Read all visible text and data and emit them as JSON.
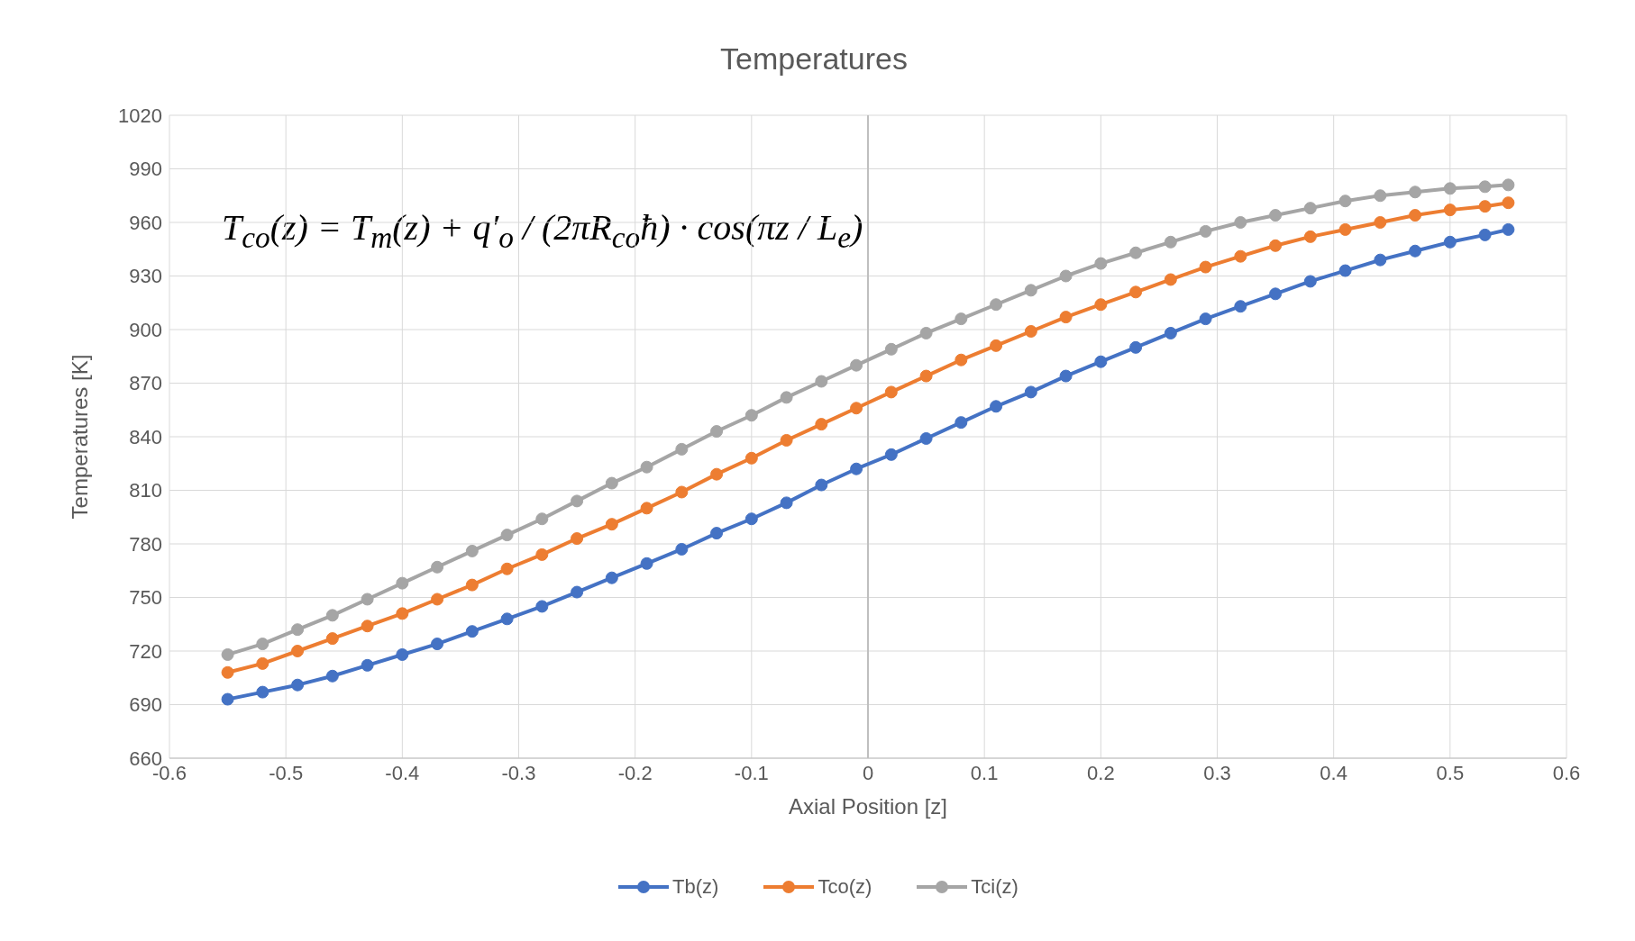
{
  "chart_data": {
    "type": "line",
    "title": "Temperatures",
    "xlabel": "Axial Position [z]",
    "ylabel": "Temperatures [K]",
    "annotations": [
      "T$_{co}$(z) = T$_{m}$(z) + q′$_{o}$ / (2πR$_{co}$ħ) · cos(πz / L$_{e}$)"
    ],
    "x": [
      -0.55,
      -0.52,
      -0.49,
      -0.46,
      -0.43,
      -0.4,
      -0.37,
      -0.34,
      -0.31,
      -0.28,
      -0.25,
      -0.22,
      -0.19,
      -0.16,
      -0.13,
      -0.1,
      -0.07,
      -0.04,
      -0.01,
      0.02,
      0.05,
      0.08,
      0.11,
      0.14,
      0.17,
      0.2,
      0.23,
      0.26,
      0.29,
      0.32,
      0.35,
      0.38,
      0.41,
      0.44,
      0.47,
      0.5,
      0.53,
      0.55
    ],
    "series": [
      {
        "name": "Tb(z)",
        "color": "#4472c4",
        "values": [
          693,
          697,
          701,
          706,
          712,
          718,
          724,
          731,
          738,
          745,
          753,
          761,
          769,
          777,
          786,
          794,
          803,
          813,
          822,
          830,
          839,
          848,
          857,
          865,
          874,
          882,
          890,
          898,
          906,
          913,
          920,
          927,
          933,
          939,
          944,
          949,
          953,
          956
        ]
      },
      {
        "name": "Tco(z)",
        "color": "#ed7d31",
        "values": [
          708,
          713,
          720,
          727,
          734,
          741,
          749,
          757,
          766,
          774,
          783,
          791,
          800,
          809,
          819,
          828,
          838,
          847,
          856,
          865,
          874,
          883,
          891,
          899,
          907,
          914,
          921,
          928,
          935,
          941,
          947,
          952,
          956,
          960,
          964,
          967,
          969,
          971
        ]
      },
      {
        "name": "Tci(z)",
        "color": "#a5a5a5",
        "values": [
          718,
          724,
          732,
          740,
          749,
          758,
          767,
          776,
          785,
          794,
          804,
          814,
          823,
          833,
          843,
          852,
          862,
          871,
          880,
          889,
          898,
          906,
          914,
          922,
          930,
          937,
          943,
          949,
          955,
          960,
          964,
          968,
          972,
          975,
          977,
          979,
          980,
          981
        ]
      }
    ],
    "xlim": [
      -0.6,
      0.6
    ],
    "xticks": [
      -0.6,
      -0.5,
      -0.4,
      -0.3,
      -0.2,
      -0.1,
      0,
      0.1,
      0.2,
      0.3,
      0.4,
      0.5,
      0.6
    ],
    "ylim": [
      660,
      1020
    ],
    "yticks": [
      660,
      690,
      720,
      750,
      780,
      810,
      840,
      870,
      900,
      930,
      960,
      990,
      1020
    ],
    "grid": true,
    "legend": "bottom",
    "marker": "circle",
    "line_style": "solid"
  }
}
